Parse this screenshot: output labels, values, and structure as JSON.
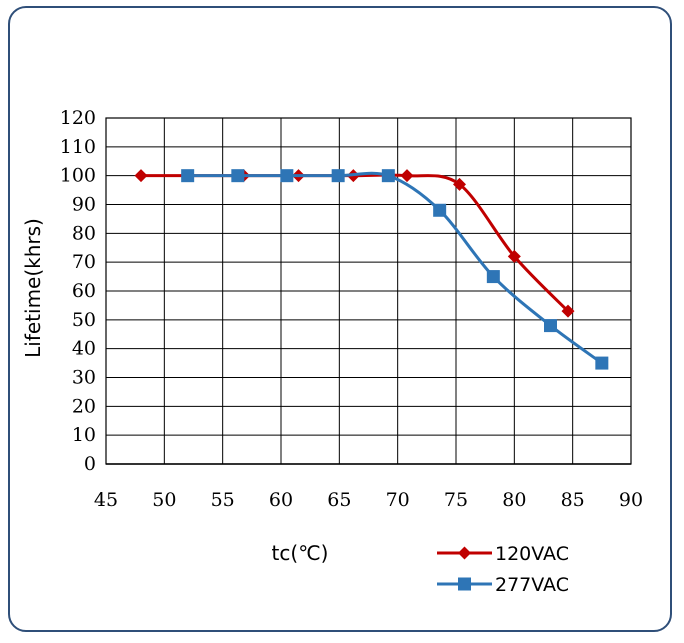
{
  "chart_data": {
    "type": "line",
    "title": "",
    "xlabel": "tc(℃)",
    "ylabel": "Lifetime(khrs)",
    "xlim": [
      45,
      90
    ],
    "ylim": [
      0,
      120
    ],
    "x_ticks": [
      "45",
      "50",
      "55",
      "60",
      "65",
      "70",
      "75",
      "80",
      "85",
      "90"
    ],
    "y_ticks": [
      "0",
      "10",
      "20",
      "30",
      "40",
      "50",
      "60",
      "70",
      "80",
      "90",
      "100",
      "110",
      "120"
    ],
    "grid": true,
    "legend_position": "bottom-right",
    "series": [
      {
        "name": "120VAC",
        "color": "#c00000",
        "marker": "diamond",
        "points": [
          {
            "x": 48.0,
            "y": 100
          },
          {
            "x": 56.8,
            "y": 100
          },
          {
            "x": 61.5,
            "y": 100
          },
          {
            "x": 66.2,
            "y": 100
          },
          {
            "x": 70.8,
            "y": 100
          },
          {
            "x": 75.3,
            "y": 97
          },
          {
            "x": 80.0,
            "y": 72
          },
          {
            "x": 84.6,
            "y": 53
          }
        ]
      },
      {
        "name": "277VAC",
        "color": "#2e75b6",
        "marker": "square",
        "points": [
          {
            "x": 52.0,
            "y": 100
          },
          {
            "x": 56.3,
            "y": 100
          },
          {
            "x": 60.5,
            "y": 100
          },
          {
            "x": 64.9,
            "y": 100
          },
          {
            "x": 69.2,
            "y": 100
          },
          {
            "x": 73.6,
            "y": 88
          },
          {
            "x": 78.2,
            "y": 65
          },
          {
            "x": 83.1,
            "y": 48
          },
          {
            "x": 87.5,
            "y": 35
          }
        ]
      }
    ]
  }
}
